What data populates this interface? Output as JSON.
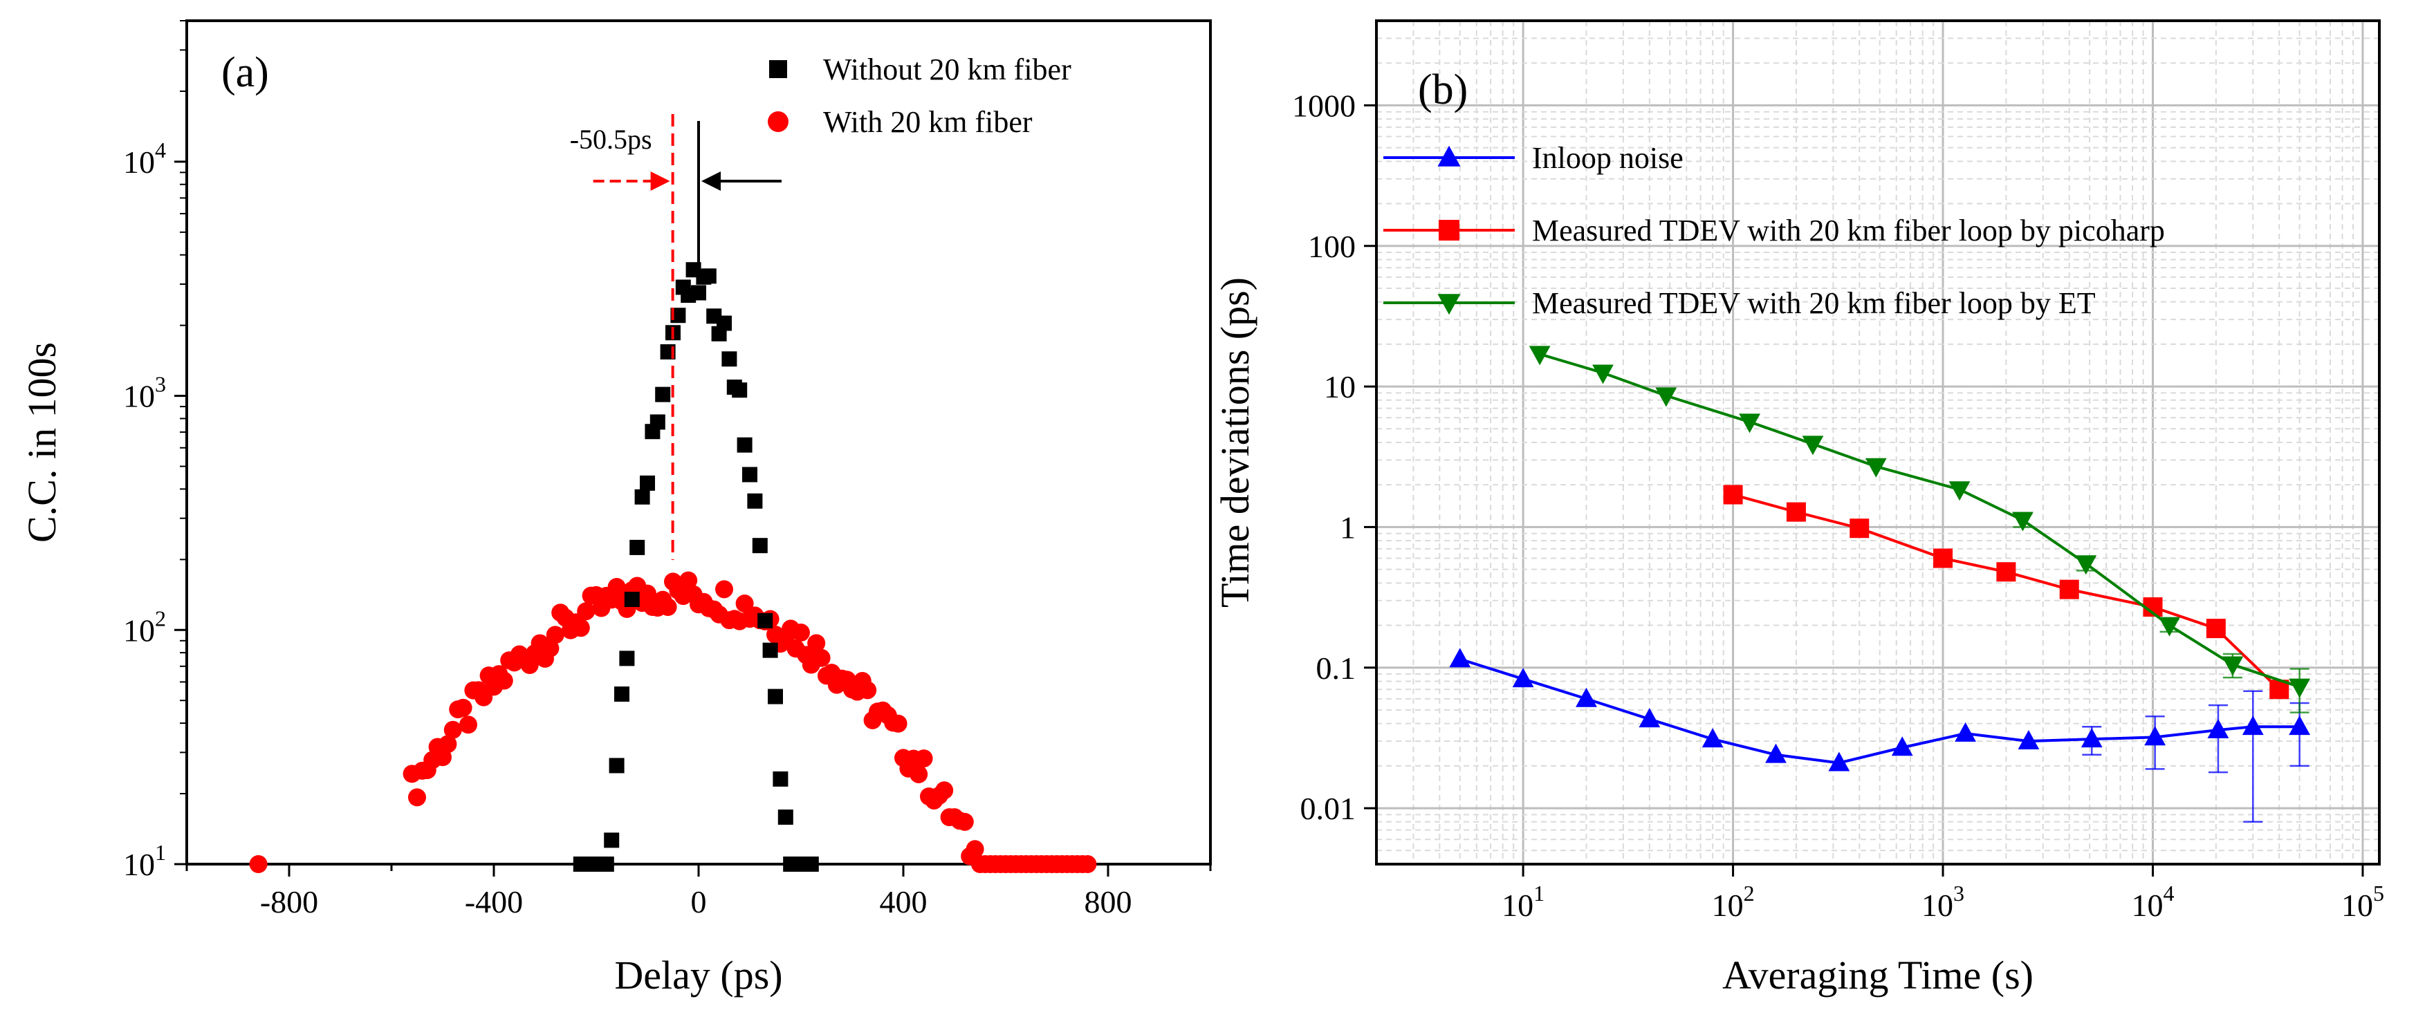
{
  "chart_data": [
    {
      "type": "scatter",
      "panel_label": "(a)",
      "xlabel": "Delay (ps)",
      "ylabel": "C.C. in 100s",
      "xlim": [
        -1000,
        1000
      ],
      "ylim": [
        10,
        40000
      ],
      "y_scale": "log",
      "x_ticks": [
        -800,
        -400,
        0,
        400,
        800
      ],
      "y_ticks": [
        {
          "value": 10,
          "base": "10",
          "exp": "1"
        },
        {
          "value": 100,
          "base": "10",
          "exp": "2"
        },
        {
          "value": 1000,
          "base": "10",
          "exp": "3"
        },
        {
          "value": 10000,
          "base": "10",
          "exp": "4"
        }
      ],
      "legend_position": "top-right",
      "annotation": {
        "text": "-50.5ps",
        "red_peak_x": -50.5,
        "black_peak_x": 0
      },
      "series": [
        {
          "name": "Without 20 km fiber",
          "color": "#000000",
          "marker": "square",
          "center": 0,
          "sigma": 52,
          "peak": 3000,
          "x": [
            -230,
            -220,
            -210,
            -200,
            -190,
            -180,
            -170,
            -160,
            -150,
            -140,
            -130,
            -120,
            -110,
            -100,
            -90,
            -80,
            -70,
            -60,
            -50,
            -40,
            -30,
            -20,
            -10,
            0,
            10,
            20,
            30,
            40,
            50,
            60,
            70,
            80,
            90,
            100,
            110,
            120,
            130,
            140,
            150,
            160,
            170,
            180,
            190,
            200,
            210,
            220
          ]
        },
        {
          "name": "With 20 km fiber",
          "color": "#ff0000",
          "marker": "circle",
          "center": -50,
          "sigma": 260,
          "peak": 145,
          "x": [
            -860,
            -560,
            -550,
            -540,
            -530,
            -520,
            -510,
            -500,
            -490,
            -480,
            -470,
            -460,
            -450,
            -440,
            -430,
            -420,
            -410,
            -400,
            -390,
            -380,
            -370,
            -360,
            -350,
            -340,
            -330,
            -320,
            -310,
            -300,
            -290,
            -280,
            -270,
            -260,
            -250,
            -240,
            -230,
            -220,
            -210,
            -200,
            -190,
            -180,
            -170,
            -160,
            -150,
            -140,
            -130,
            -120,
            -110,
            -100,
            -90,
            -80,
            -70,
            -60,
            -50,
            -40,
            -30,
            -20,
            -10,
            0,
            10,
            20,
            30,
            40,
            50,
            60,
            70,
            80,
            90,
            100,
            110,
            120,
            130,
            140,
            150,
            160,
            170,
            180,
            190,
            200,
            210,
            220,
            230,
            240,
            250,
            260,
            270,
            280,
            290,
            300,
            310,
            320,
            330,
            340,
            350,
            360,
            370,
            380,
            390,
            400,
            410,
            420,
            430,
            440,
            450,
            460,
            470,
            480,
            490,
            500,
            510,
            520,
            530,
            540,
            550,
            560,
            570,
            580,
            590,
            600,
            610,
            620,
            630,
            640,
            650,
            660,
            670,
            680,
            690,
            700,
            710,
            720,
            730,
            740,
            750,
            760
          ]
        }
      ]
    },
    {
      "type": "line",
      "panel_label": "(b)",
      "xlabel": "Averaging Time (s)",
      "ylabel": "Time deviations (ps)",
      "x_scale": "log",
      "y_scale": "log",
      "xlim": [
        2,
        120000
      ],
      "ylim": [
        0.004,
        4000
      ],
      "x_ticks": [
        {
          "value": 10,
          "base": "10",
          "exp": "1"
        },
        {
          "value": 100,
          "base": "10",
          "exp": "2"
        },
        {
          "value": 1000,
          "base": "10",
          "exp": "3"
        },
        {
          "value": 10000,
          "base": "10",
          "exp": "4"
        },
        {
          "value": 100000,
          "base": "10",
          "exp": "5"
        }
      ],
      "y_ticks": [
        {
          "value": 0.01,
          "label": "0.01"
        },
        {
          "value": 0.1,
          "label": "0.1"
        },
        {
          "value": 1,
          "label": "1"
        },
        {
          "value": 10,
          "label": "10"
        },
        {
          "value": 100,
          "label": "100"
        },
        {
          "value": 1000,
          "label": "1000"
        }
      ],
      "grid": true,
      "legend_position": "top-left",
      "series": [
        {
          "name": "Inloop noise",
          "color": "#0000ff",
          "marker": "triangle-up",
          "x": [
            5,
            10,
            20,
            40,
            80,
            160,
            320,
            640,
            1280,
            2560,
            5120,
            10240,
            20480,
            30000,
            50000
          ],
          "y": [
            0.115,
            0.083,
            0.06,
            0.043,
            0.031,
            0.024,
            0.021,
            0.027,
            0.034,
            0.03,
            0.031,
            0.032,
            0.036,
            0.038,
            0.038
          ],
          "err": [
            0,
            0,
            0,
            0,
            0,
            0,
            0,
            0,
            0,
            0,
            0.007,
            0.013,
            0.018,
            0.03,
            0.018
          ]
        },
        {
          "name": "Measured TDEV with 20 km fiber loop by picoharp",
          "color": "#ff0000",
          "marker": "square",
          "x": [
            100,
            200,
            400,
            1000,
            2000,
            4000,
            10000,
            20000,
            40000
          ],
          "y": [
            1.7,
            1.28,
            0.98,
            0.6,
            0.48,
            0.36,
            0.27,
            0.19,
            0.07
          ],
          "err": [
            0,
            0,
            0,
            0,
            0,
            0,
            0,
            0,
            0
          ]
        },
        {
          "name": "Measured TDEV with 20 km fiber loop by ET",
          "color": "#008000",
          "marker": "triangle-down",
          "x": [
            12,
            24,
            48,
            120,
            240,
            480,
            1200,
            2400,
            4800,
            12000,
            24000,
            50000
          ],
          "y": [
            17,
            12.5,
            8.6,
            5.6,
            3.9,
            2.7,
            1.85,
            1.12,
            0.55,
            0.2,
            0.105,
            0.073
          ],
          "err": [
            0,
            0,
            0,
            0,
            0,
            0,
            0,
            0.12,
            0.06,
            0.02,
            0.02,
            0.025
          ]
        }
      ]
    }
  ]
}
